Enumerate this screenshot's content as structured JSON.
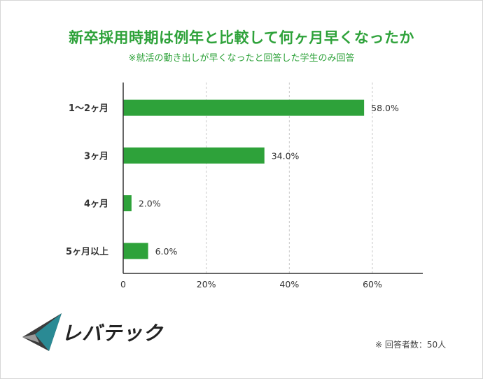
{
  "title": "新卒採用時期は例年と比較して何ヶ月早くなったか",
  "subtitle": "※就活の動き出しが早くなったと回答した学生のみ回答",
  "note": "※ 回答者数：50人",
  "logo_text": "レバテック",
  "colors": {
    "accent": "#2ea23a",
    "bar": "#2ea23a",
    "grid": "#c8c8c8",
    "axis": "#333333"
  },
  "chart_data": {
    "type": "bar",
    "orientation": "horizontal",
    "categories": [
      "1〜2ヶ月",
      "3ヶ月",
      "4ヶ月",
      "5ヶ月以上"
    ],
    "values": [
      58.0,
      34.0,
      2.0,
      6.0
    ],
    "value_labels": [
      "58.0%",
      "34.0%",
      "2.0%",
      "6.0%"
    ],
    "xlim": [
      0,
      70
    ],
    "xticks": [
      0,
      20,
      40,
      60
    ],
    "xtick_labels": [
      "0",
      "20%",
      "40%",
      "60%"
    ],
    "grid": "vertical dashed",
    "title": "新卒採用時期は例年と比較して何ヶ月早くなったか",
    "xlabel": "",
    "ylabel": ""
  }
}
